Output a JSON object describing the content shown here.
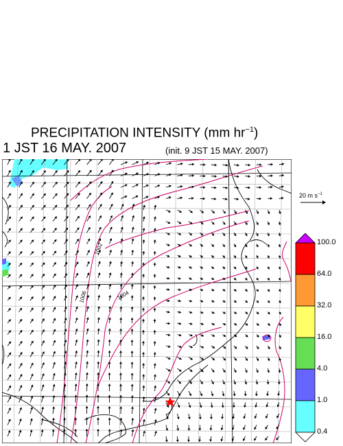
{
  "header": {
    "title_main": "PRECIPITATION INTENSITY (mm hr",
    "title_exp": "−1",
    "title_close": ")",
    "valid_time": "1 JST 16 MAY. 2007",
    "init_time": "(init. 9 JST 15 MAY. 2007)"
  },
  "wind_scale": {
    "label_main": "20 m s",
    "label_exp": "−1"
  },
  "colorbar": {
    "labels": [
      "100.0",
      "64.0",
      "32.0",
      "16.0",
      "4.0",
      "1.0",
      "0.4"
    ],
    "colors": [
      "#ff0000",
      "#ff9933",
      "#ffff66",
      "#66dd55",
      "#6666ff",
      "#66ffff"
    ],
    "top_color": "#cc00ff",
    "bottom_color": "#ffffff"
  },
  "contours": {
    "labels": [
      "1002",
      "1004",
      "1006"
    ],
    "color": "#cc0066"
  },
  "marker": {
    "color": "#ff0000",
    "shape": "star"
  }
}
